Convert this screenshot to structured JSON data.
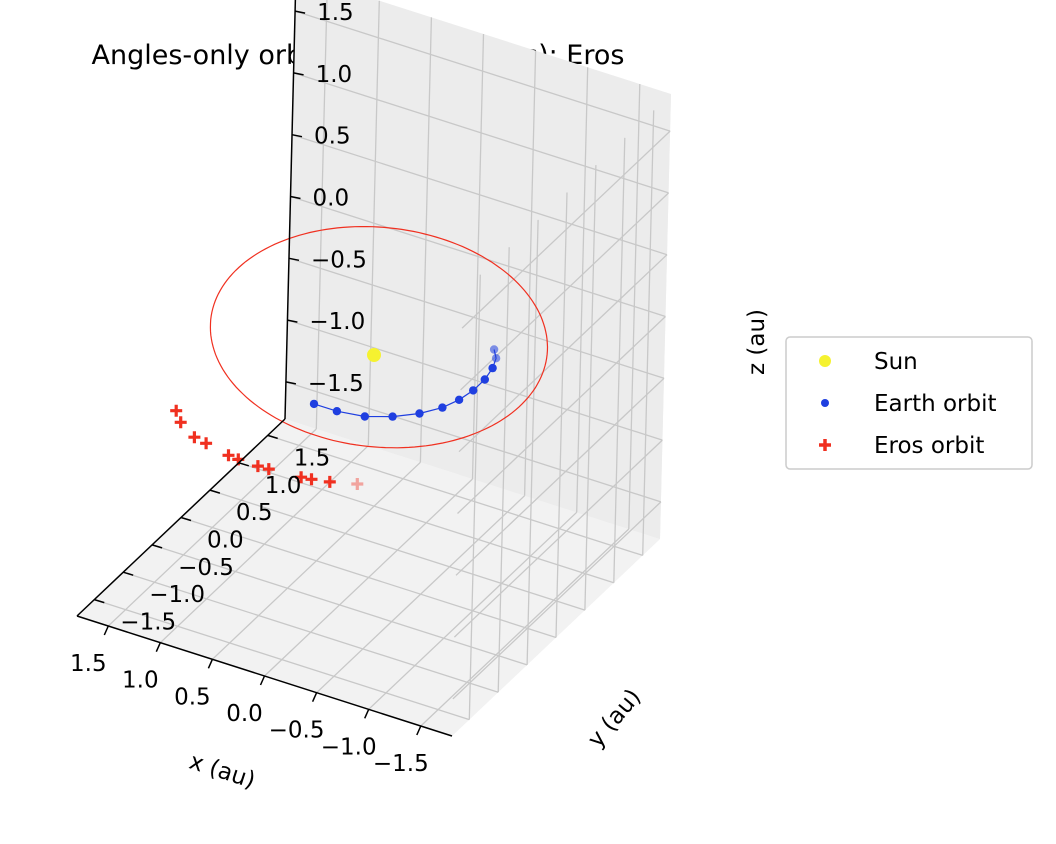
{
  "chart_data": {
    "type": "scatter",
    "title": "Angles-only orbit determ. (Gauss): Eros",
    "xlabel": "x (au)",
    "ylabel": "y (au)",
    "zlabel": "z (au)",
    "xlim": [
      -1.8,
      1.8
    ],
    "ylim": [
      -1.8,
      1.8
    ],
    "zlim": [
      -1.8,
      1.8
    ],
    "ticks": {
      "x": [
        "−1.5",
        "−1.0",
        "−0.5",
        "0.0",
        "0.5",
        "1.0",
        "1.5"
      ],
      "y": [
        "−1.5",
        "−1.0",
        "−0.5",
        "0.0",
        "0.5",
        "1.0",
        "1.5"
      ],
      "z": [
        "−1.5",
        "−1.0",
        "−0.5",
        "0.0",
        "0.5",
        "1.0",
        "1.5"
      ]
    },
    "grid": true,
    "legend_position": "right",
    "series": [
      {
        "name": "Sun",
        "marker": "circle",
        "color": "#f5f230",
        "points": [
          [
            0,
            0,
            0
          ]
        ]
      },
      {
        "name": "Earth orbit",
        "marker": "dot",
        "color": "#1f3fe0",
        "points": [
          [
            0.06,
            -0.93,
            0
          ],
          [
            -0.16,
            -0.93,
            0
          ],
          [
            -0.4,
            -0.88,
            0
          ],
          [
            -0.6,
            -0.76,
            0
          ],
          [
            -0.77,
            -0.6,
            0
          ],
          [
            -0.89,
            -0.42,
            0
          ],
          [
            -0.95,
            -0.24,
            0
          ],
          [
            -0.98,
            -0.05,
            0
          ],
          [
            -0.98,
            0.15,
            0
          ],
          [
            -0.95,
            0.34,
            0
          ],
          [
            -0.9,
            0.49,
            0
          ],
          [
            -0.82,
            0.6,
            0
          ]
        ]
      },
      {
        "name": "Eros orbit",
        "marker": "plus",
        "color": "#f03020",
        "points": [
          [
            1.29,
            -1.08,
            -0.32
          ],
          [
            1.17,
            -1.22,
            -0.32
          ],
          [
            0.95,
            -1.38,
            -0.31
          ],
          [
            0.81,
            -1.43,
            -0.3
          ],
          [
            0.54,
            -1.53,
            -0.28
          ],
          [
            0.43,
            -1.56,
            -0.27
          ],
          [
            0.22,
            -1.6,
            -0.25
          ],
          [
            0.11,
            -1.61,
            -0.24
          ],
          [
            -0.21,
            -1.63,
            -0.21
          ],
          [
            -0.31,
            -1.63,
            -0.2
          ],
          [
            -0.48,
            -1.62,
            -0.18
          ],
          [
            -0.72,
            -1.58,
            -0.15
          ]
        ]
      }
    ],
    "lines": [
      {
        "name": "Earth orbit path",
        "color": "#1f3fe0"
      },
      {
        "name": "Eros orbit path",
        "color": "#f03020"
      }
    ]
  }
}
